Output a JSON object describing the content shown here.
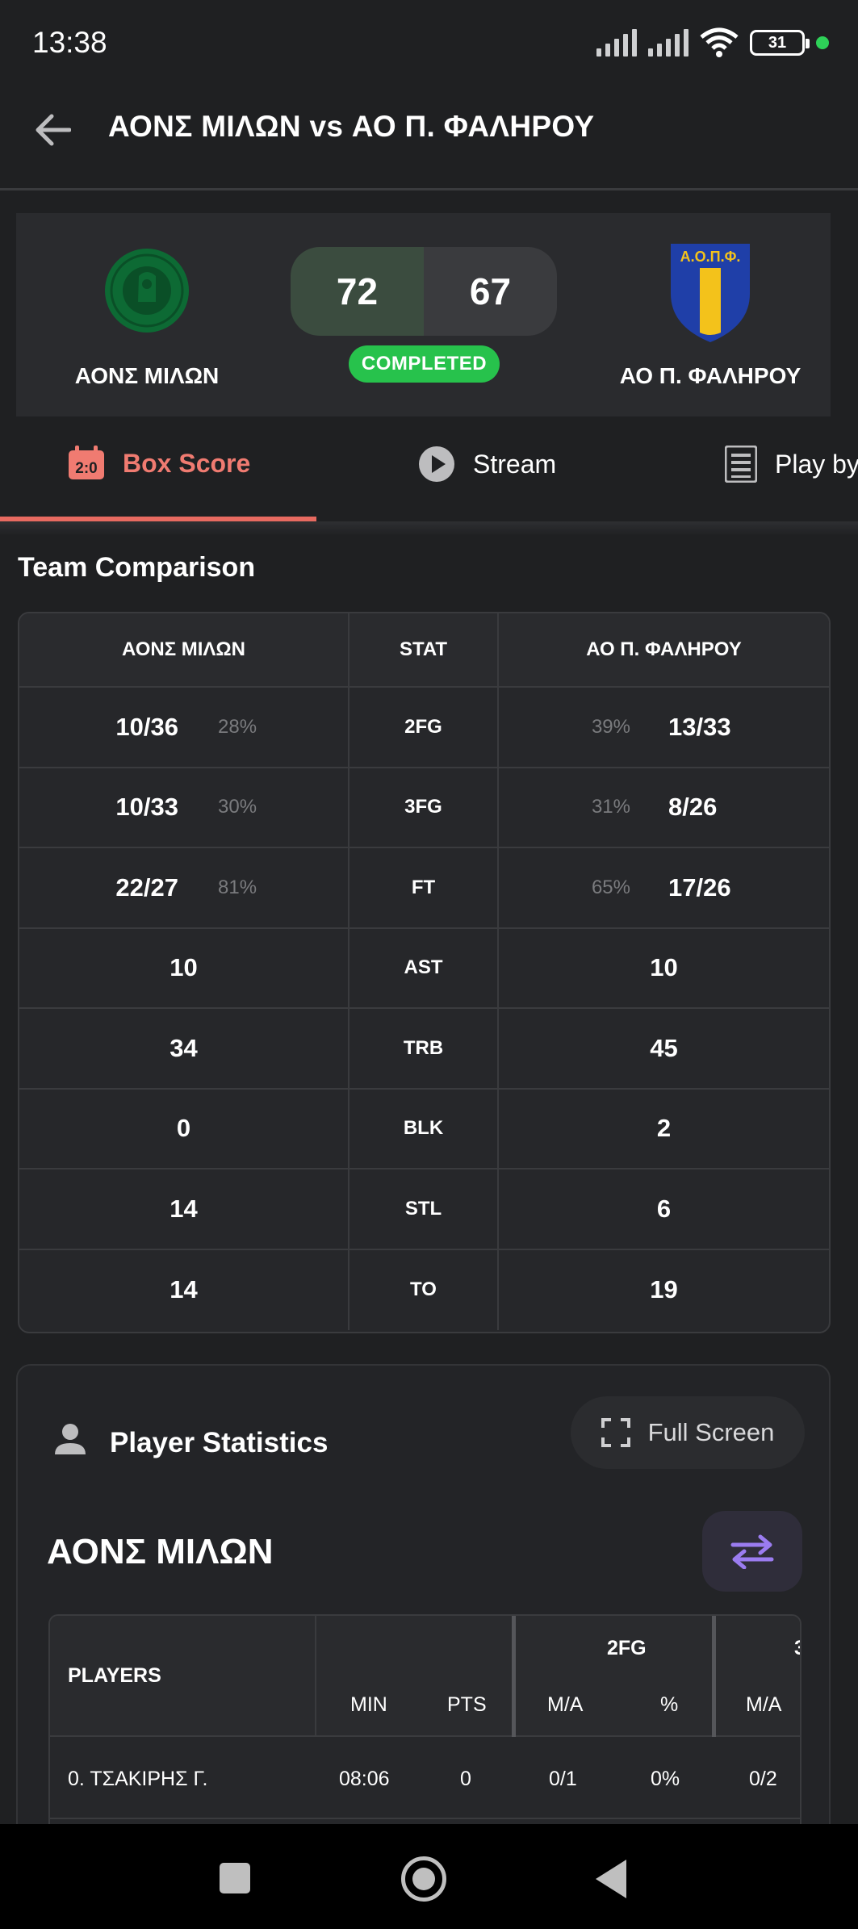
{
  "status_bar": {
    "time": "13:38",
    "battery": "31"
  },
  "header": {
    "title": "ΑΟΝΣ ΜΙΛΩΝ vs ΑΟ Π. ΦΑΛΗΡΟΥ"
  },
  "match": {
    "home_team": "ΑΟΝΣ ΜΙΛΩΝ",
    "away_team": "ΑΟ Π. ΦΑΛΗΡΟΥ",
    "home_score": "72",
    "away_score": "67",
    "status": "COMPLETED",
    "away_logo_text": "Α.Ο.Π.Φ."
  },
  "tabs": [
    {
      "label": "Box Score",
      "active": true
    },
    {
      "label": "Stream"
    },
    {
      "label": "Play by"
    }
  ],
  "comparison": {
    "title": "Team Comparison",
    "headers": {
      "left": "ΑΟΝΣ ΜΙΛΩΝ",
      "mid": "STAT",
      "right": "ΑΟ Π. ΦΑΛΗΡΟΥ"
    },
    "rows": [
      {
        "stat": "2FG",
        "left": "10/36",
        "left_pct": "28%",
        "right": "13/33",
        "right_pct": "39%"
      },
      {
        "stat": "3FG",
        "left": "10/33",
        "left_pct": "30%",
        "right": "8/26",
        "right_pct": "31%"
      },
      {
        "stat": "FT",
        "left": "22/27",
        "left_pct": "81%",
        "right": "17/26",
        "right_pct": "65%"
      },
      {
        "stat": "AST",
        "left": "10",
        "right": "10"
      },
      {
        "stat": "TRB",
        "left": "34",
        "right": "45"
      },
      {
        "stat": "BLK",
        "left": "0",
        "right": "2"
      },
      {
        "stat": "STL",
        "left": "14",
        "right": "6"
      },
      {
        "stat": "TO",
        "left": "14",
        "right": "19"
      }
    ]
  },
  "player_stats": {
    "title": "Player Statistics",
    "fullscreen_label": "Full Screen",
    "team": "ΑΟΝΣ ΜΙΛΩΝ",
    "table": {
      "players_header": "PLAYERS",
      "group_2fg": "2FG",
      "group_3fg": "3",
      "min": "MIN",
      "pts": "PTS",
      "ma": "M/A",
      "pct": "%",
      "ma3": "M/A",
      "rows": [
        {
          "name": "0. ΤΣΑΚΙΡΗΣ Γ.",
          "min": "08:06",
          "pts": "0",
          "fg2_ma": "0/1",
          "fg2_pct": "0%",
          "fg3_ma": "0/2"
        }
      ]
    }
  },
  "colors": {
    "accent": "#e76a60",
    "completed": "#27c24c",
    "background": "#1f2022"
  }
}
